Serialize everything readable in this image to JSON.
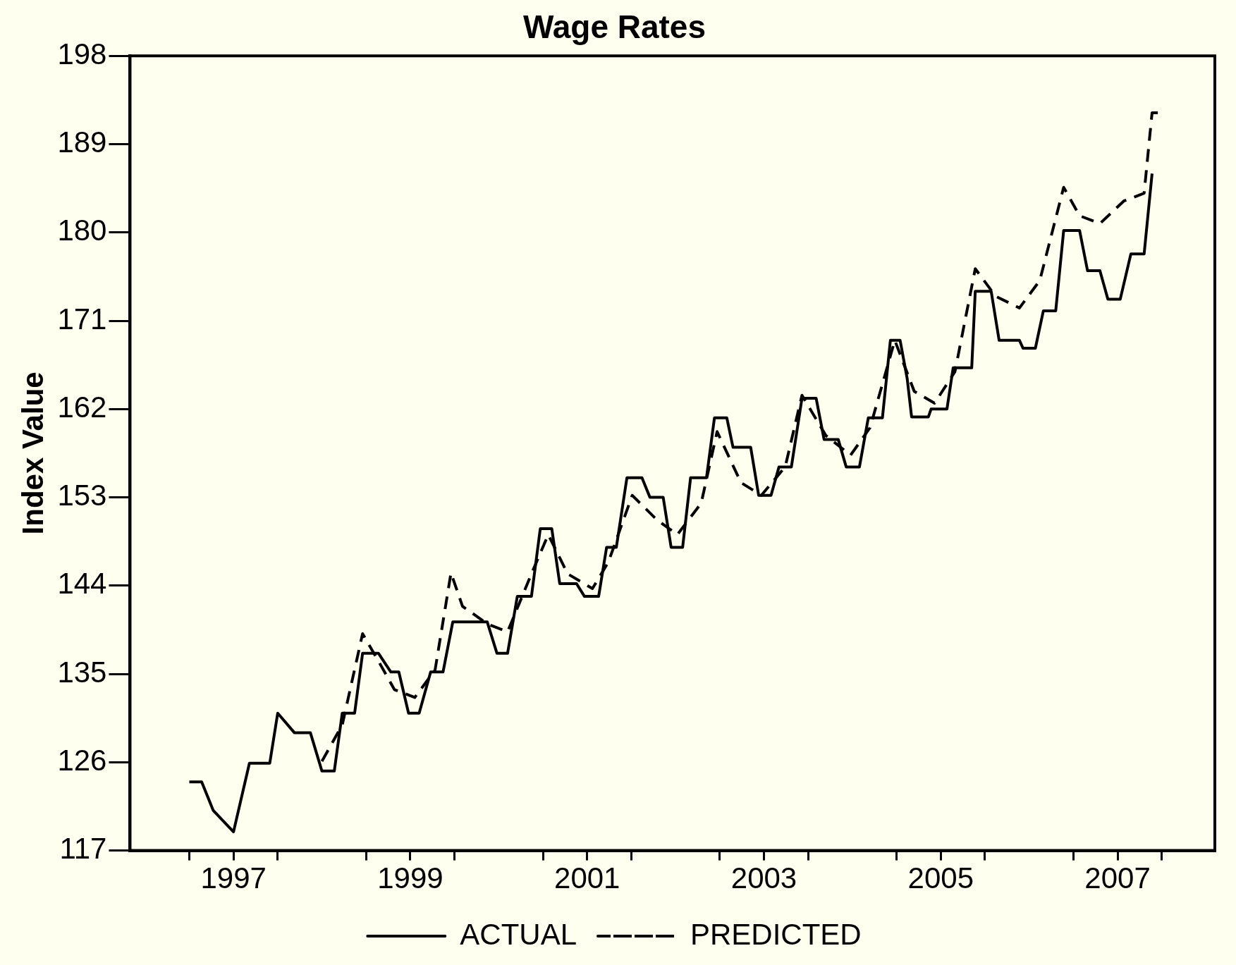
{
  "chart_data": {
    "type": "line",
    "title": "Wage Rates",
    "ylabel": "Index Value",
    "xlim": [
      1996.33,
      2008.6
    ],
    "xticks": [
      {
        "value": 1997,
        "label": null
      },
      {
        "value": 1997.5,
        "label": "1997"
      },
      {
        "value": 1998,
        "label": null
      },
      {
        "value": 1999,
        "label": null
      },
      {
        "value": 1999.5,
        "label": "1999"
      },
      {
        "value": 2000,
        "label": null
      },
      {
        "value": 2001,
        "label": null
      },
      {
        "value": 2001.5,
        "label": "2001"
      },
      {
        "value": 2002,
        "label": null
      },
      {
        "value": 2003,
        "label": null
      },
      {
        "value": 2003.5,
        "label": "2003"
      },
      {
        "value": 2004,
        "label": null
      },
      {
        "value": 2005,
        "label": null
      },
      {
        "value": 2005.5,
        "label": "2005"
      },
      {
        "value": 2006,
        "label": null
      },
      {
        "value": 2007,
        "label": null
      },
      {
        "value": 2007.5,
        "label": "2007"
      },
      {
        "value": 2008,
        "label": null
      }
    ],
    "ylim": [
      117,
      198
    ],
    "yticks": [
      117,
      126,
      135,
      144,
      153,
      162,
      171,
      180,
      189,
      198
    ],
    "grid": false,
    "legend": "bottom",
    "marker": "none",
    "series": [
      {
        "name": "ACTUAL",
        "color": "#000000",
        "line_style": "solid",
        "x": [
          1997.0,
          1997.14,
          1997.27,
          1997.5,
          1997.68,
          1997.91,
          1998.0,
          1998.19,
          1998.37,
          1998.5,
          1998.64,
          1998.73,
          1998.87,
          1998.96,
          1999.14,
          1999.28,
          1999.37,
          1999.48,
          1999.6,
          1999.73,
          1999.87,
          1999.98,
          2000.37,
          2000.48,
          2000.6,
          2000.71,
          2000.87,
          2000.97,
          2001.1,
          2001.19,
          2001.38,
          2001.47,
          2001.63,
          2001.72,
          2001.83,
          2001.95,
          2002.12,
          2002.21,
          2002.36,
          2002.45,
          2002.58,
          2002.67,
          2002.85,
          2002.94,
          2003.08,
          2003.15,
          2003.35,
          2003.44,
          2003.58,
          2003.67,
          2003.81,
          2003.93,
          2004.09,
          2004.18,
          2004.34,
          2004.43,
          2004.58,
          2004.68,
          2004.84,
          2004.93,
          2005.04,
          2005.12,
          2005.17,
          2005.36,
          2005.39,
          2005.57,
          2005.64,
          2005.85,
          2005.89,
          2006.07,
          2006.16,
          2006.39,
          2006.43,
          2006.57,
          2006.66,
          2006.8,
          2006.89,
          2007.07,
          2007.16,
          2007.3,
          2007.39,
          2007.53,
          2007.65,
          2007.8,
          2007.89
        ],
        "values": [
          124,
          124,
          121.1,
          118.9,
          125.9,
          125.9,
          131,
          129,
          129,
          125.1,
          125.1,
          131,
          131,
          137.1,
          137.1,
          135.2,
          135.2,
          131,
          131,
          135.2,
          135.2,
          140.3,
          140.3,
          137.1,
          137.1,
          142.9,
          142.9,
          149.8,
          149.8,
          144.2,
          144.2,
          142.9,
          142.9,
          147.9,
          147.9,
          155,
          155,
          153,
          153,
          147.9,
          147.9,
          155,
          155,
          161.1,
          161.1,
          158.1,
          158.1,
          153.2,
          153.2,
          156.1,
          156.1,
          163.1,
          163.1,
          158.9,
          158.9,
          156.1,
          156.1,
          161.1,
          161.1,
          169,
          169,
          165.1,
          161.2,
          161.2,
          162,
          162,
          166.2,
          166.2,
          174,
          174,
          169,
          169,
          168.2,
          168.2,
          172,
          172,
          180.2,
          180.2,
          176.1,
          176.1,
          173.2,
          173.2,
          177.8,
          177.8,
          186
        ]
      },
      {
        "name": "PREDICTED",
        "color": "#000000",
        "line_style": "dashed",
        "x": [
          1998.5,
          1998.73,
          1998.96,
          1999.14,
          1999.32,
          1999.55,
          1999.78,
          1999.96,
          2000.09,
          2000.37,
          2000.6,
          2000.87,
          2001.06,
          2001.28,
          2001.56,
          2001.74,
          2002.01,
          2002.29,
          2002.52,
          2002.79,
          2002.97,
          2003.24,
          2003.47,
          2003.74,
          2003.93,
          2004.2,
          2004.48,
          2004.7,
          2004.98,
          2005.2,
          2005.43,
          2005.66,
          2005.89,
          2006.12,
          2006.39,
          2006.62,
          2006.89,
          2007.07,
          2007.3,
          2007.57,
          2007.8,
          2007.89,
          2007.98
        ],
        "values": [
          126.1,
          129.8,
          139.1,
          136.3,
          133.4,
          132.6,
          135.4,
          145.3,
          141.9,
          140.1,
          139.3,
          145.2,
          149.2,
          145.2,
          143.7,
          146.4,
          153.2,
          150.7,
          149.2,
          152.4,
          159.7,
          154.5,
          153.2,
          156.1,
          163.4,
          159.3,
          157.3,
          160.1,
          169,
          163.8,
          162.6,
          165.8,
          176.3,
          173.5,
          172.3,
          175.1,
          184.6,
          181.7,
          180.9,
          183.2,
          184,
          192.2,
          192.2
        ]
      }
    ]
  }
}
